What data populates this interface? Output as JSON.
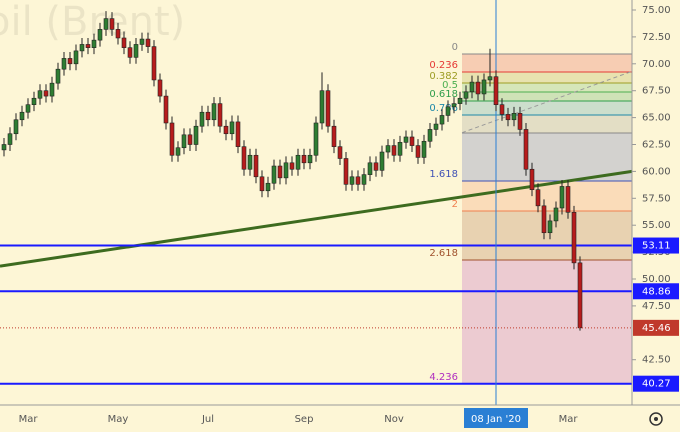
{
  "chart_data": {
    "type": "candlestick",
    "title": "oil (Brent)",
    "categories": [
      null,
      null,
      null,
      null,
      "Mar",
      null,
      null,
      null,
      null,
      null,
      null,
      null,
      null,
      null,
      null,
      null,
      null,
      null,
      null,
      "May",
      null,
      null,
      null,
      null,
      null,
      null,
      null,
      null,
      null,
      null,
      null,
      null,
      null,
      null,
      "Jul",
      null,
      null,
      null,
      null,
      null,
      null,
      null,
      null,
      null,
      null,
      null,
      null,
      null,
      null,
      null,
      "Sep",
      null,
      null,
      null,
      null,
      null,
      null,
      null,
      null,
      null,
      null,
      null,
      null,
      null,
      null,
      "Nov",
      null,
      null,
      null,
      null,
      null,
      null,
      null,
      null,
      null,
      null,
      null,
      null,
      null,
      null,
      null,
      null,
      "08 Jan '20",
      null,
      null,
      null,
      null,
      null,
      null,
      null,
      null,
      null,
      null,
      null,
      "Mar",
      null,
      null
    ],
    "open": [
      62.0,
      62.5,
      63.5,
      64.8,
      65.5,
      66.2,
      66.8,
      67.5,
      67.0,
      68.2,
      69.5,
      70.5,
      70.0,
      71.2,
      71.8,
      71.5,
      72.2,
      73.2,
      74.2,
      73.2,
      72.4,
      71.5,
      70.6,
      71.8,
      72.3,
      71.6,
      68.5,
      67.0,
      64.5,
      61.5,
      62.2,
      63.4,
      62.5,
      64.2,
      65.5,
      64.8,
      66.3,
      64.2,
      63.5,
      64.6,
      62.3,
      60.2,
      61.5,
      59.5,
      58.2,
      58.9,
      60.5,
      59.4,
      60.8,
      60.2,
      61.5,
      60.8,
      61.5,
      64.5,
      67.5,
      64.2,
      62.3,
      61.2,
      58.8,
      59.5,
      58.8,
      59.7,
      60.8,
      60.1,
      61.8,
      62.4,
      61.5,
      62.7,
      63.2,
      62.4,
      61.3,
      62.8,
      63.9,
      64.4,
      65.2,
      66.0,
      66.3,
      66.8,
      67.4,
      68.3,
      67.2,
      68.5,
      68.8,
      66.2,
      65.3,
      64.8,
      65.4,
      63.9,
      60.2,
      58.3,
      56.8,
      54.3,
      55.4,
      56.6,
      58.6,
      56.2,
      51.5
    ],
    "high": [
      63.1,
      64.1,
      65.4,
      66.1,
      66.8,
      67.4,
      68.1,
      68.1,
      68.8,
      70.1,
      71.1,
      71.1,
      71.8,
      72.4,
      72.4,
      72.8,
      73.8,
      74.9,
      74.8,
      73.8,
      73.0,
      72.1,
      72.4,
      72.9,
      72.9,
      72.2,
      69.1,
      67.6,
      65.1,
      62.8,
      64.0,
      64.0,
      64.8,
      66.1,
      66.1,
      66.9,
      66.9,
      64.8,
      65.2,
      65.2,
      62.9,
      62.1,
      62.1,
      60.1,
      59.5,
      61.1,
      61.1,
      61.4,
      61.4,
      62.1,
      62.1,
      62.1,
      65.1,
      69.2,
      68.1,
      64.8,
      62.9,
      61.8,
      60.1,
      60.1,
      60.3,
      61.4,
      61.4,
      62.4,
      63.0,
      63.0,
      63.3,
      63.8,
      63.8,
      63.0,
      63.4,
      64.5,
      65.0,
      65.8,
      66.6,
      66.9,
      67.4,
      68.0,
      68.9,
      68.9,
      69.1,
      71.4,
      69.4,
      66.8,
      65.9,
      66.0,
      66.0,
      64.5,
      60.8,
      58.9,
      57.4,
      56.0,
      57.2,
      59.2,
      59.2,
      56.8,
      52.1
    ],
    "low": [
      61.4,
      61.9,
      62.9,
      64.2,
      64.9,
      65.6,
      66.2,
      66.4,
      66.4,
      67.6,
      68.9,
      69.4,
      69.4,
      70.6,
      70.9,
      70.9,
      71.6,
      72.6,
      72.6,
      71.8,
      70.9,
      70.0,
      70.0,
      71.2,
      71.0,
      67.9,
      66.4,
      63.9,
      60.9,
      60.9,
      61.6,
      61.9,
      61.9,
      63.6,
      64.2,
      64.2,
      63.6,
      62.9,
      62.9,
      61.7,
      59.6,
      59.6,
      58.9,
      57.6,
      57.6,
      58.3,
      58.8,
      58.8,
      59.6,
      59.6,
      60.2,
      60.2,
      60.9,
      63.9,
      63.6,
      61.7,
      60.6,
      58.2,
      58.2,
      58.2,
      58.2,
      59.1,
      59.5,
      59.5,
      61.2,
      60.9,
      60.9,
      62.1,
      61.8,
      60.7,
      60.7,
      62.2,
      63.3,
      63.8,
      64.6,
      65.4,
      65.7,
      66.2,
      66.8,
      66.6,
      66.6,
      67.9,
      65.6,
      64.7,
      64.2,
      64.2,
      63.3,
      59.6,
      57.7,
      56.2,
      53.7,
      53.7,
      54.8,
      56.0,
      55.6,
      50.9,
      45.2
    ],
    "close": [
      62.5,
      63.5,
      64.8,
      65.5,
      66.2,
      66.8,
      67.5,
      67.0,
      68.2,
      69.5,
      70.5,
      70.0,
      71.2,
      71.8,
      71.5,
      72.2,
      73.2,
      74.2,
      73.2,
      72.4,
      71.5,
      70.6,
      71.8,
      72.3,
      71.6,
      68.5,
      67.0,
      64.5,
      61.5,
      62.2,
      63.4,
      62.5,
      64.2,
      65.5,
      64.8,
      66.3,
      64.2,
      63.5,
      64.6,
      62.3,
      60.2,
      61.5,
      59.5,
      58.2,
      58.9,
      60.5,
      59.4,
      60.8,
      60.2,
      61.5,
      60.8,
      61.5,
      64.5,
      67.5,
      64.2,
      62.3,
      61.2,
      58.8,
      59.5,
      58.8,
      59.7,
      60.8,
      60.1,
      61.8,
      62.4,
      61.5,
      62.7,
      63.2,
      62.4,
      61.3,
      62.8,
      63.9,
      64.4,
      65.2,
      66.0,
      66.3,
      66.8,
      67.4,
      68.3,
      67.2,
      68.5,
      68.8,
      66.2,
      65.3,
      64.8,
      65.4,
      63.9,
      60.2,
      58.3,
      56.8,
      54.3,
      55.4,
      56.6,
      58.6,
      56.2,
      51.5,
      45.46
    ],
    "up_color": "#2e7d32",
    "down_color": "#b71c1c",
    "ylim": [
      38.29,
      75.93
    ],
    "yticks": [
      {
        "value": 75,
        "label": "75.00"
      },
      {
        "value": 72.5,
        "label": "72.50"
      },
      {
        "value": 70,
        "label": "70.00"
      },
      {
        "value": 67.5,
        "label": "67.50"
      },
      {
        "value": 65,
        "label": "65.00"
      },
      {
        "value": 62.5,
        "label": "62.50"
      },
      {
        "value": 60,
        "label": "60.00"
      },
      {
        "value": 57.5,
        "label": "57.50"
      },
      {
        "value": 55,
        "label": "55.00"
      },
      {
        "value": 52.5,
        "label": "52.50"
      },
      {
        "value": 50,
        "label": "50.00"
      },
      {
        "value": 47.5,
        "label": "47.50"
      },
      {
        "value": 42.5,
        "label": "42.50"
      }
    ],
    "levels": [
      53.11,
      48.86,
      40.27
    ],
    "level_color": "#1a1aff",
    "last_price": 45.46,
    "last_color": "#c0392b",
    "crosshair_index": 82,
    "trend_line": [
      51.2,
      60.0
    ],
    "trend_color": "#3d6b1f",
    "dashed_line": [
      63.6,
      69.3
    ],
    "fib_levels": [
      {
        "ratio": 0,
        "value": 70.91,
        "color": "#888888"
      },
      {
        "ratio": 0.236,
        "value": 69.24,
        "color": "#e53935"
      },
      {
        "ratio": 0.382,
        "value": 68.22,
        "color": "#9e9d24"
      },
      {
        "ratio": 0.5,
        "value": 67.38,
        "color": "#4caf50"
      },
      {
        "ratio": 0.618,
        "value": 66.54,
        "color": "#2e9d4a"
      },
      {
        "ratio": 0.786,
        "value": 65.24,
        "color": "#1e88a8"
      },
      {
        "ratio": null,
        "value": 63.57,
        "color": "#888888"
      },
      {
        "ratio": 1.618,
        "value": 59.11,
        "color": "#3f51b5"
      },
      {
        "ratio": 2,
        "value": 56.32,
        "color": "#f08050"
      },
      {
        "ratio": 2.618,
        "value": 51.77,
        "color": "#a0522d"
      },
      {
        "ratio": 4.236,
        "value": 40.24,
        "color": "#b030c0"
      }
    ]
  }
}
